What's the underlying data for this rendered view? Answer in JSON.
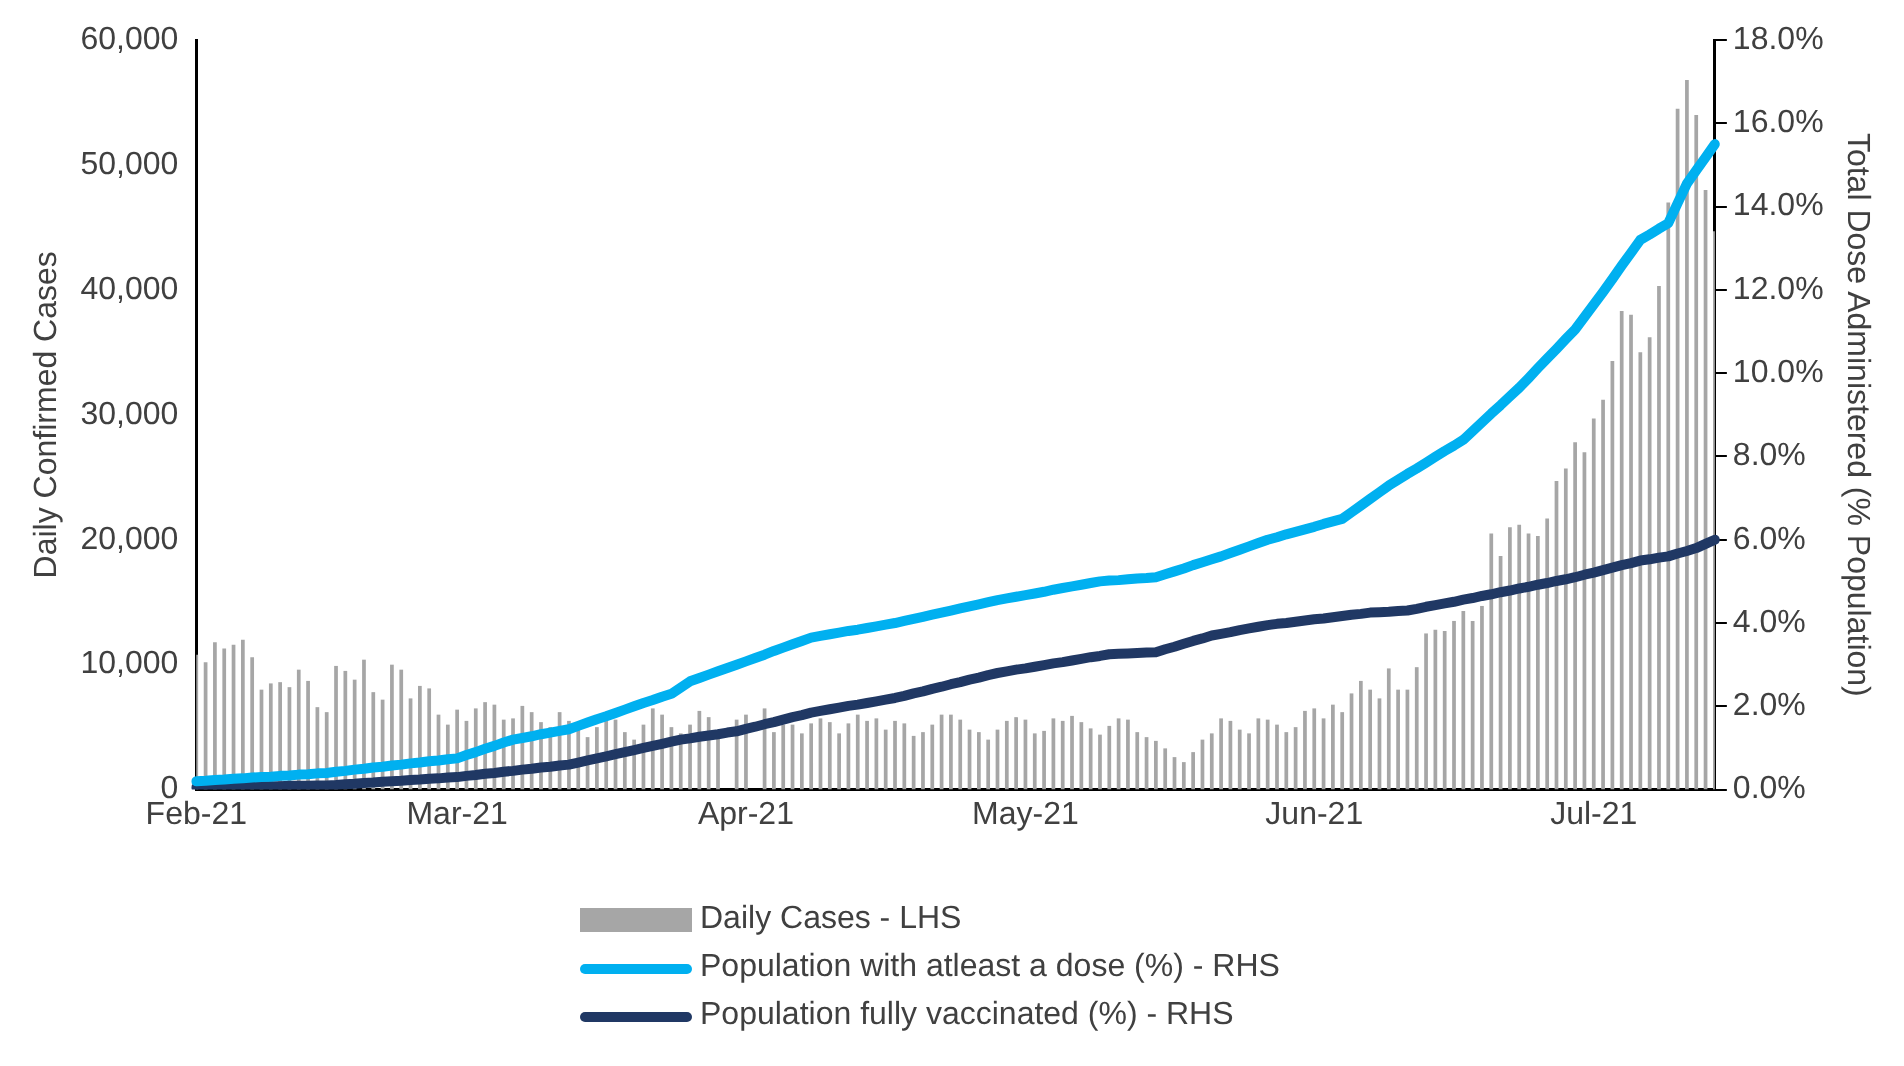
{
  "chart_data": {
    "type": "bar",
    "categories": [
      "Feb-21",
      null,
      null,
      null,
      null,
      null,
      null,
      null,
      null,
      null,
      null,
      null,
      null,
      null,
      null,
      null,
      null,
      null,
      null,
      null,
      null,
      null,
      null,
      null,
      null,
      null,
      null,
      null,
      "Mar-21",
      null,
      null,
      null,
      null,
      null,
      null,
      null,
      null,
      null,
      null,
      null,
      null,
      null,
      null,
      null,
      null,
      null,
      null,
      null,
      null,
      null,
      null,
      null,
      null,
      null,
      null,
      null,
      null,
      null,
      null,
      "Apr-21",
      null,
      null,
      null,
      null,
      null,
      null,
      null,
      null,
      null,
      null,
      null,
      null,
      null,
      null,
      null,
      null,
      null,
      null,
      null,
      null,
      null,
      null,
      null,
      null,
      null,
      null,
      null,
      null,
      null,
      "May-21",
      null,
      null,
      null,
      null,
      null,
      null,
      null,
      null,
      null,
      null,
      null,
      null,
      null,
      null,
      null,
      null,
      null,
      null,
      null,
      null,
      null,
      null,
      null,
      null,
      null,
      null,
      null,
      null,
      null,
      null,
      "Jun-21",
      null,
      null,
      null,
      null,
      null,
      null,
      null,
      null,
      null,
      null,
      null,
      null,
      null,
      null,
      null,
      null,
      null,
      null,
      null,
      null,
      null,
      null,
      null,
      null,
      null,
      null,
      null,
      null,
      null,
      "Jul-21",
      null,
      null,
      null,
      null,
      null,
      null,
      null,
      null,
      null,
      null,
      null,
      null,
      null
    ],
    "series": [
      {
        "name": "Daily Cases - LHS",
        "color": "#a6a6a6",
        "values": [
          10800,
          10200,
          11800,
          11300,
          11600,
          12000,
          10600,
          8000,
          8500,
          8600,
          8200,
          9600,
          8700,
          6600,
          6200,
          9900,
          9500,
          8800,
          10400,
          7800,
          7200,
          10000,
          9600,
          7300,
          8300,
          8100,
          6000,
          5200,
          6400,
          5500,
          6500,
          7000,
          6800,
          5600,
          5700,
          6700,
          6200,
          5400,
          5000,
          6200,
          5500,
          4800,
          4200,
          5000,
          6000,
          5600,
          4600,
          4000,
          5200,
          6500,
          6000,
          5000,
          4500,
          5200,
          6300,
          5800,
          4400,
          null,
          5600,
          6000,
          null,
          6500,
          4600,
          5200,
          5200,
          4500,
          5300,
          5700,
          5400,
          4500,
          5300,
          6000,
          5500,
          5700,
          4800,
          5500,
          5300,
          4300,
          4600,
          5200,
          6000,
          6000,
          5600,
          4800,
          4600,
          4000,
          4800,
          5500,
          5800,
          5600,
          4500,
          4700,
          5700,
          5500,
          5900,
          5400,
          4900,
          4400,
          5100,
          5700,
          5600,
          4600,
          4200,
          3900,
          3300,
          2600,
          2200,
          3000,
          4000,
          4500,
          5700,
          5500,
          4800,
          4500,
          5700,
          5600,
          5200,
          4600,
          5000,
          6300,
          6500,
          5700,
          6800,
          6200,
          7700,
          8700,
          8000,
          7300,
          9700,
          8000,
          8000,
          9800,
          12500,
          12800,
          12700,
          13500,
          14300,
          13500,
          14700,
          20500,
          18700,
          21000,
          21200,
          20500,
          20300,
          21700,
          24700,
          25700,
          27800,
          27000,
          29700,
          31200,
          34300,
          38300,
          38000,
          35000,
          36200,
          40300,
          47000,
          54500,
          56800,
          54000,
          48000,
          44700
        ]
      },
      {
        "name": "Population with atleast a dose (%) - RHS",
        "type": "line",
        "axis": "y2",
        "color": "#00b0f0",
        "values": [
          0.2,
          0.21,
          0.23,
          0.24,
          0.26,
          0.27,
          0.29,
          0.3,
          0.31,
          0.33,
          0.34,
          0.36,
          0.37,
          0.39,
          0.4,
          0.43,
          0.45,
          0.48,
          0.5,
          0.53,
          0.55,
          0.58,
          0.6,
          0.63,
          0.65,
          0.68,
          0.7,
          0.73,
          0.75,
          0.83,
          0.9,
          0.98,
          1.05,
          1.13,
          1.2,
          1.24,
          1.28,
          1.33,
          1.37,
          1.41,
          1.45,
          1.53,
          1.61,
          1.69,
          1.76,
          1.84,
          1.92,
          2.0,
          2.08,
          2.15,
          2.23,
          2.3,
          2.45,
          2.6,
          2.68,
          2.76,
          2.84,
          2.92,
          3.0,
          3.08,
          3.16,
          3.24,
          3.33,
          3.41,
          3.49,
          3.57,
          3.65,
          3.69,
          3.73,
          3.77,
          3.81,
          3.84,
          3.88,
          3.92,
          3.96,
          4.0,
          4.05,
          4.1,
          4.15,
          4.2,
          4.25,
          4.3,
          4.35,
          4.4,
          4.45,
          4.5,
          4.55,
          4.59,
          4.63,
          4.67,
          4.71,
          4.75,
          4.8,
          4.84,
          4.88,
          4.92,
          4.96,
          5.0,
          5.02,
          5.03,
          5.05,
          5.07,
          5.08,
          5.1,
          5.17,
          5.24,
          5.31,
          5.39,
          5.46,
          5.53,
          5.6,
          5.68,
          5.76,
          5.84,
          5.92,
          6.0,
          6.06,
          6.13,
          6.19,
          6.25,
          6.31,
          6.38,
          6.44,
          6.5,
          6.66,
          6.82,
          6.98,
          7.14,
          7.3,
          7.44,
          7.58,
          7.71,
          7.85,
          7.99,
          8.13,
          8.26,
          8.4,
          8.61,
          8.82,
          9.03,
          9.23,
          9.44,
          9.65,
          9.88,
          10.12,
          10.35,
          10.58,
          10.82,
          11.05,
          11.35,
          11.65,
          11.95,
          12.26,
          12.58,
          12.89,
          13.2,
          13.33,
          13.47,
          13.6,
          14.08,
          14.55,
          14.87,
          15.18,
          15.5
        ]
      },
      {
        "name": "Population fully vaccinated (%) - RHS",
        "type": "line",
        "axis": "y2",
        "color": "#203864",
        "values": [
          0.05,
          0.05,
          0.06,
          0.06,
          0.06,
          0.07,
          0.07,
          0.08,
          0.08,
          0.08,
          0.09,
          0.09,
          0.09,
          0.1,
          0.1,
          0.11,
          0.13,
          0.14,
          0.16,
          0.17,
          0.19,
          0.2,
          0.21,
          0.23,
          0.24,
          0.26,
          0.27,
          0.29,
          0.3,
          0.33,
          0.35,
          0.38,
          0.4,
          0.43,
          0.45,
          0.48,
          0.5,
          0.53,
          0.55,
          0.58,
          0.6,
          0.65,
          0.7,
          0.75,
          0.8,
          0.85,
          0.9,
          0.95,
          1.0,
          1.05,
          1.1,
          1.15,
          1.2,
          1.23,
          1.27,
          1.3,
          1.33,
          1.37,
          1.4,
          1.46,
          1.51,
          1.57,
          1.62,
          1.68,
          1.74,
          1.79,
          1.85,
          1.89,
          1.93,
          1.97,
          2.01,
          2.04,
          2.08,
          2.12,
          2.16,
          2.2,
          2.25,
          2.31,
          2.36,
          2.42,
          2.47,
          2.53,
          2.58,
          2.64,
          2.69,
          2.75,
          2.8,
          2.84,
          2.88,
          2.91,
          2.95,
          2.99,
          3.03,
          3.06,
          3.1,
          3.14,
          3.18,
          3.21,
          3.25,
          3.26,
          3.27,
          3.28,
          3.29,
          3.3,
          3.37,
          3.43,
          3.5,
          3.57,
          3.63,
          3.7,
          3.74,
          3.78,
          3.83,
          3.87,
          3.91,
          3.95,
          3.98,
          4.0,
          4.03,
          4.06,
          4.09,
          4.11,
          4.14,
          4.17,
          4.2,
          4.22,
          4.25,
          4.26,
          4.27,
          4.29,
          4.3,
          4.34,
          4.39,
          4.43,
          4.47,
          4.51,
          4.56,
          4.6,
          4.65,
          4.69,
          4.74,
          4.78,
          4.83,
          4.87,
          4.92,
          4.96,
          5.01,
          5.05,
          5.1,
          5.16,
          5.21,
          5.27,
          5.33,
          5.39,
          5.44,
          5.5,
          5.53,
          5.57,
          5.6,
          5.67,
          5.73,
          5.8,
          5.9,
          6.0
        ]
      }
    ],
    "ylabel": "Daily Confirmed Cases",
    "y2label": "Total Dose Administered (% Population)",
    "ylim": [
      0,
      60000
    ],
    "yticks": [
      0,
      {
        "value": 10000,
        "label": "10,000"
      },
      {
        "value": 20000,
        "label": "20,000"
      },
      {
        "value": 30000,
        "label": "30,000"
      },
      {
        "value": 40000,
        "label": "40,000"
      },
      {
        "value": 50000,
        "label": "50,000"
      },
      {
        "value": 60000,
        "label": "60,000"
      }
    ],
    "y2lim": [
      0,
      18
    ],
    "y2ticks": [
      {
        "value": 0,
        "label": "0.0%"
      },
      {
        "value": 2,
        "label": "2.0%"
      },
      {
        "value": 4,
        "label": "4.0%"
      },
      {
        "value": 6,
        "label": "6.0%"
      },
      {
        "value": 8,
        "label": "8.0%"
      },
      {
        "value": 10,
        "label": "10.0%"
      },
      {
        "value": 12,
        "label": "12.0%"
      },
      {
        "value": 14,
        "label": "14.0%"
      },
      {
        "value": 16,
        "label": "16.0%"
      },
      {
        "value": 18,
        "label": "18.0%"
      }
    ],
    "grid": false,
    "legend": "bottom",
    "marker": "none",
    "line_style": "solid"
  }
}
